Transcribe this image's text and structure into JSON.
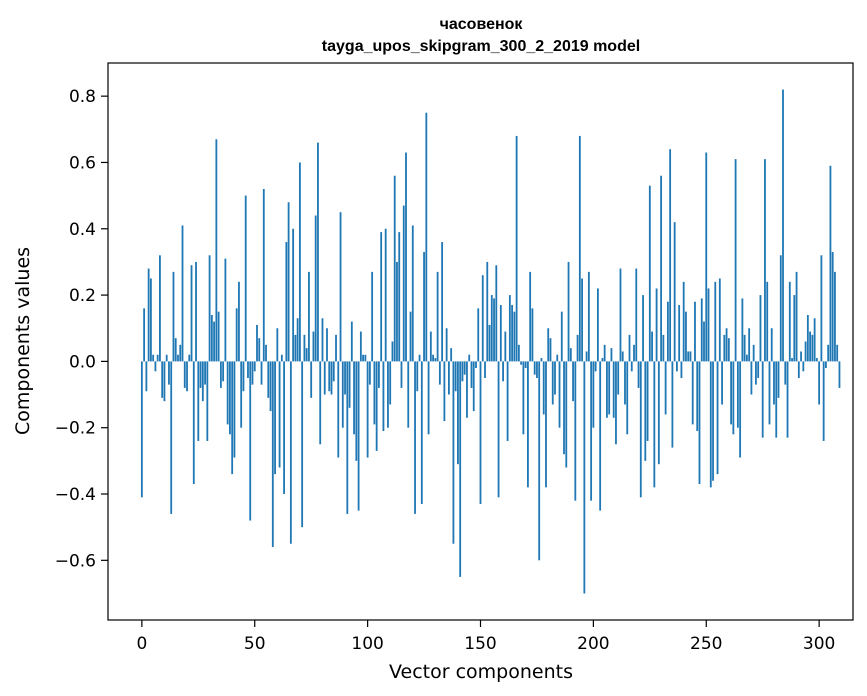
{
  "chart_data": {
    "type": "bar",
    "title": "часовенок",
    "subtitle": "tayga_upos_skipgram_300_2_2019 model",
    "xlabel": "Vector components",
    "ylabel": "Components values",
    "xlim": [
      -15,
      315
    ],
    "ylim": [
      -0.78,
      0.9
    ],
    "xticks": [
      0,
      50,
      100,
      150,
      200,
      250,
      300
    ],
    "xtick_labels": [
      "0",
      "50",
      "100",
      "150",
      "200",
      "250",
      "300"
    ],
    "yticks": [
      -0.6,
      -0.4,
      -0.2,
      0.0,
      0.2,
      0.4,
      0.6,
      0.8
    ],
    "ytick_labels": [
      "−0.6",
      "−0.4",
      "−0.2",
      "0.0",
      "0.2",
      "0.4",
      "0.6",
      "0.8"
    ],
    "bar_color": "#1f77b4",
    "grid": false,
    "values": [
      -0.41,
      0.16,
      -0.09,
      0.28,
      0.25,
      0.02,
      -0.03,
      0.02,
      0.32,
      -0.11,
      -0.12,
      0.02,
      -0.07,
      -0.46,
      0.27,
      0.07,
      0.02,
      0.05,
      0.41,
      -0.08,
      -0.09,
      0.02,
      0.29,
      -0.37,
      0.3,
      -0.24,
      -0.08,
      -0.12,
      -0.07,
      -0.24,
      0.32,
      0.14,
      0.12,
      0.67,
      0.15,
      -0.08,
      -0.06,
      0.31,
      -0.19,
      -0.22,
      -0.34,
      -0.29,
      0.16,
      0.24,
      -0.2,
      -0.09,
      0.5,
      -0.05,
      -0.48,
      -0.07,
      -0.03,
      0.11,
      0.07,
      -0.07,
      0.52,
      0.05,
      -0.11,
      -0.15,
      -0.56,
      -0.34,
      0.1,
      -0.32,
      0.02,
      -0.4,
      0.36,
      0.48,
      -0.55,
      0.4,
      0.08,
      0.13,
      0.6,
      -0.5,
      0.08,
      0.04,
      0.27,
      -0.11,
      0.09,
      0.44,
      0.66,
      -0.25,
      0.13,
      -0.1,
      0.1,
      -0.09,
      -0.1,
      -0.06,
      0.08,
      -0.29,
      0.45,
      -0.2,
      -0.1,
      -0.46,
      -0.14,
      0.12,
      -0.22,
      -0.3,
      -0.45,
      0.09,
      0.02,
      0.02,
      -0.29,
      -0.07,
      0.27,
      -0.19,
      -0.27,
      -0.08,
      0.39,
      -0.21,
      0.4,
      -0.2,
      -0.13,
      0.06,
      0.56,
      0.3,
      0.39,
      -0.08,
      0.47,
      0.63,
      -0.2,
      0.15,
      0.41,
      -0.46,
      -0.09,
      0.02,
      -0.43,
      0.33,
      0.75,
      -0.22,
      0.09,
      0.02,
      0.01,
      0.27,
      -0.07,
      0.36,
      -0.18,
      0.1,
      -0.1,
      0.04,
      -0.55,
      -0.09,
      -0.31,
      -0.65,
      -0.06,
      -0.04,
      -0.17,
      0.02,
      -0.08,
      -0.15,
      -0.02,
      0.16,
      -0.43,
      0.26,
      -0.05,
      0.3,
      0.11,
      0.2,
      0.19,
      0.29,
      -0.41,
      0.17,
      -0.06,
      0.09,
      -0.24,
      0.2,
      0.17,
      0.15,
      0.68,
      0.05,
      -0.01,
      -0.22,
      -0.02,
      -0.38,
      0.27,
      0.16,
      -0.04,
      -0.05,
      -0.6,
      0.01,
      -0.16,
      -0.38,
      0.1,
      0.07,
      -0.13,
      -0.1,
      0.02,
      -0.2,
      0.15,
      -0.28,
      -0.32,
      0.3,
      0.04,
      -0.12,
      -0.42,
      0.08,
      0.68,
      0.25,
      -0.7,
      0.03,
      0.27,
      -0.42,
      -0.2,
      -0.03,
      0.22,
      -0.45,
      0.01,
      0.05,
      -0.17,
      -0.16,
      0.04,
      -0.17,
      -0.25,
      -0.1,
      0.28,
      0.03,
      -0.13,
      -0.22,
      0.08,
      -0.03,
      0.05,
      0.28,
      -0.08,
      -0.41,
      0.2,
      -0.3,
      -0.24,
      0.53,
      0.09,
      -0.38,
      0.22,
      -0.31,
      0.56,
      0.08,
      -0.16,
      0.18,
      0.64,
      -0.26,
      0.42,
      -0.03,
      0.17,
      -0.05,
      0.24,
      0.15,
      0.03,
      0.03,
      -0.19,
      0.18,
      -0.21,
      -0.37,
      0.19,
      0.12,
      0.63,
      0.22,
      -0.38,
      -0.36,
      0.24,
      -0.34,
      0.25,
      -0.13,
      0.08,
      0.1,
      0.07,
      -0.19,
      -0.22,
      0.61,
      -0.2,
      -0.29,
      0.19,
      0.08,
      0.02,
      0.1,
      -0.1,
      0.05,
      -0.07,
      -0.05,
      0.2,
      -0.23,
      0.61,
      0.24,
      -0.19,
      0.1,
      -0.13,
      -0.23,
      -0.11,
      0.32,
      0.82,
      -0.07,
      -0.23,
      0.24,
      0.01,
      0.2,
      0.27,
      -0.05,
      0.03,
      -0.03,
      0.06,
      0.14,
      0.09,
      0.08,
      0.13,
      0.01,
      -0.13,
      0.32,
      -0.24,
      -0.02,
      0.05,
      0.59,
      0.33,
      0.27,
      0.05,
      -0.08
    ]
  }
}
